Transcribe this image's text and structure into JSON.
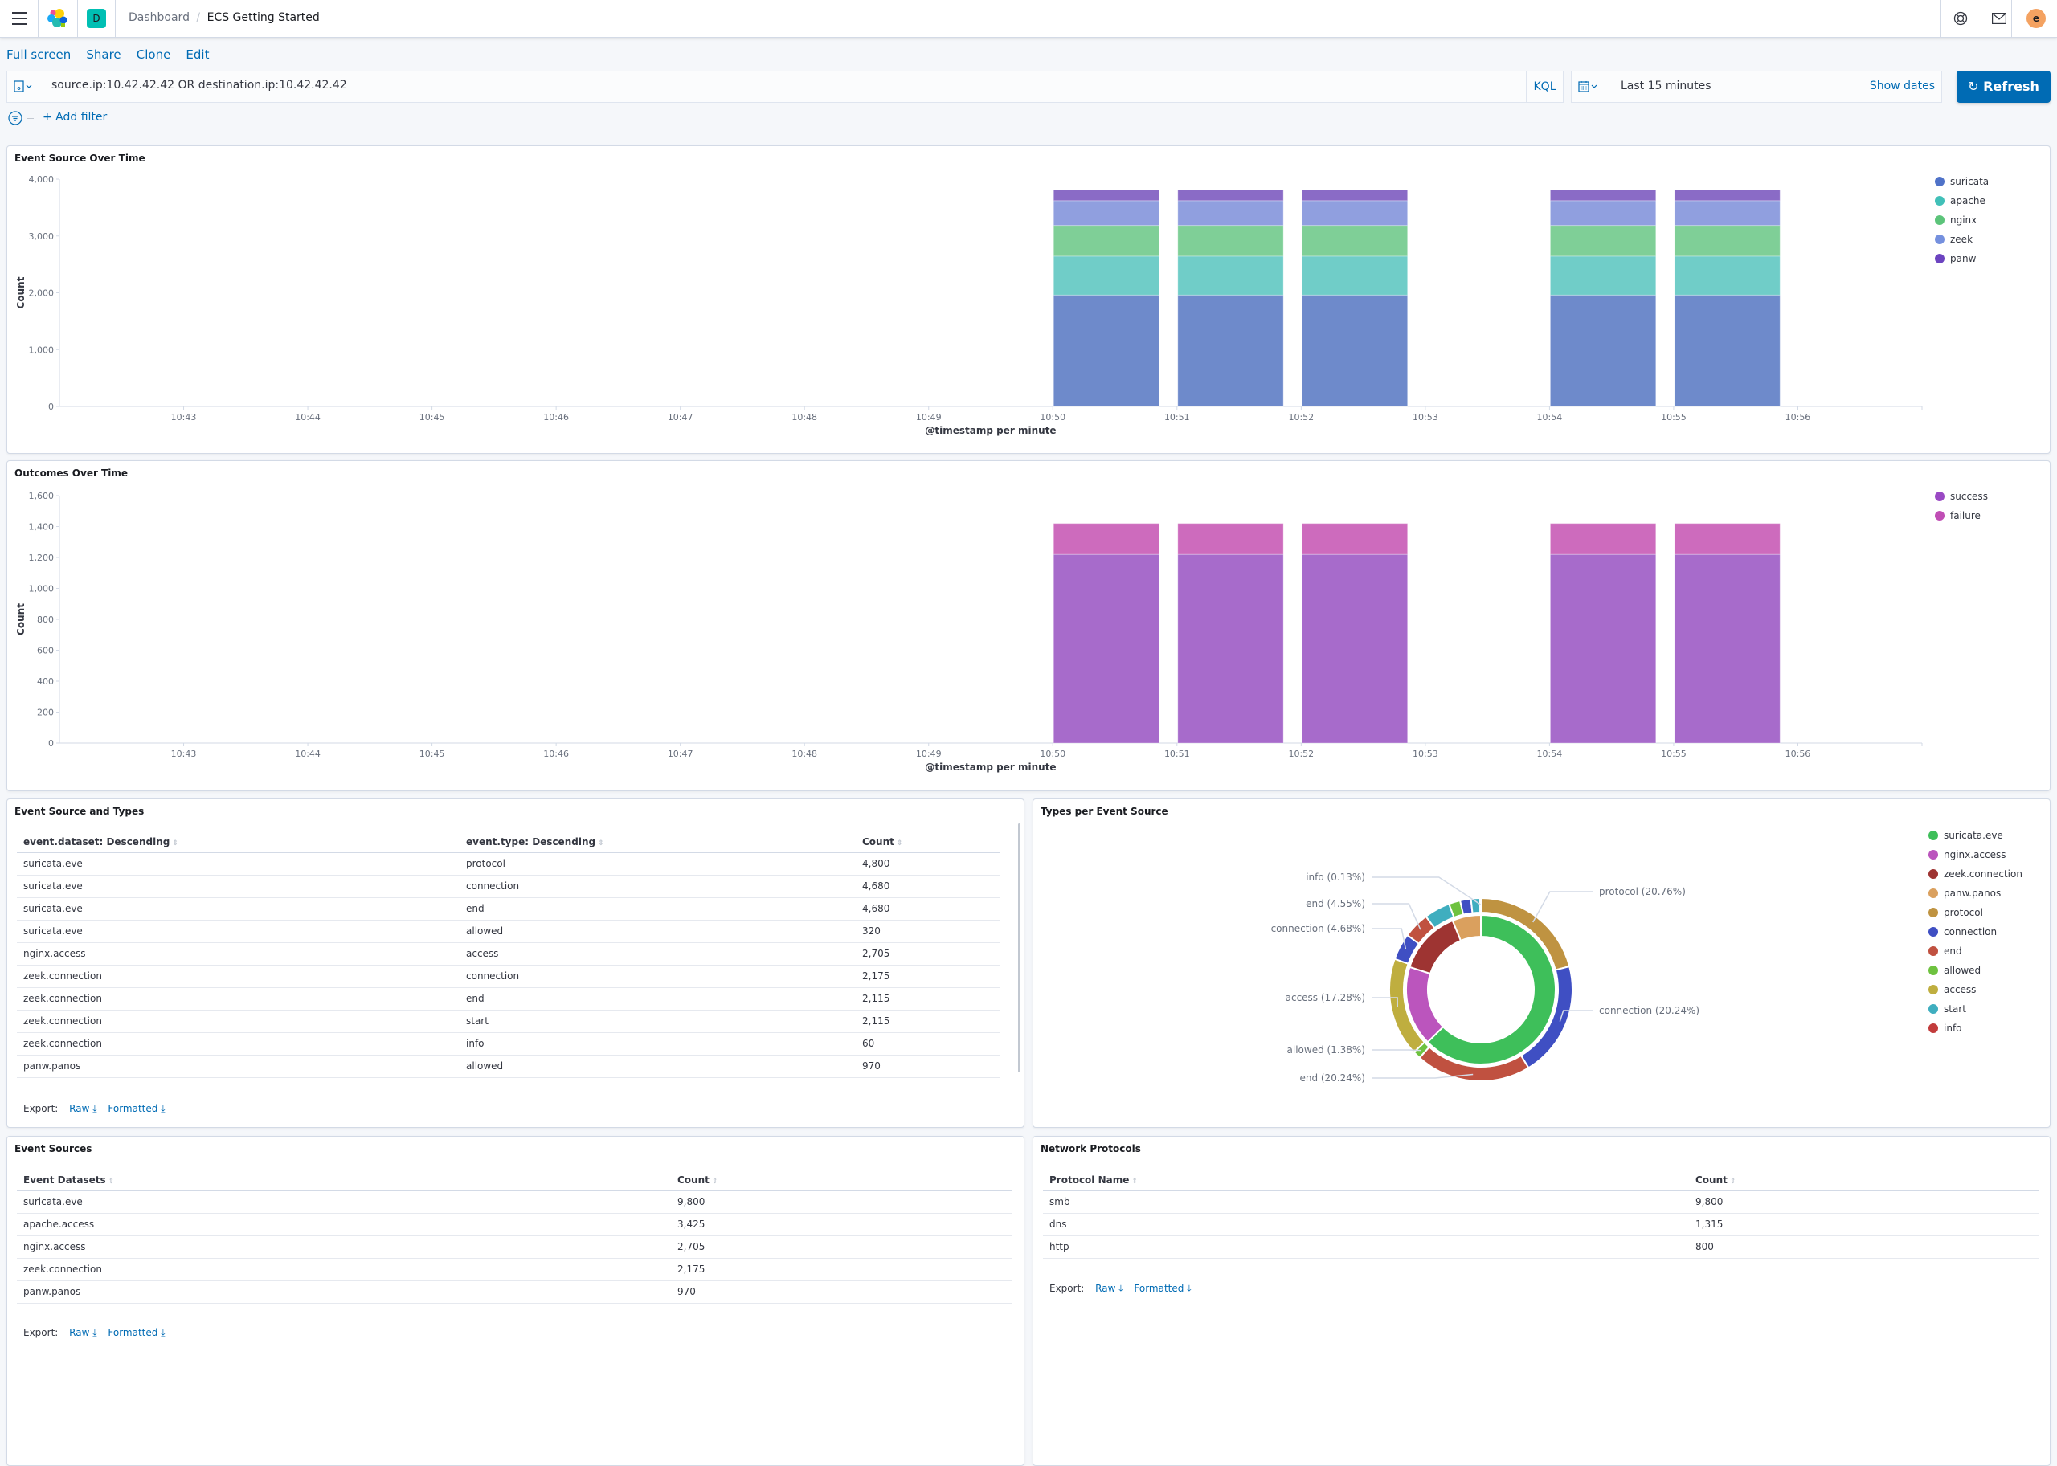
{
  "header": {
    "menu_icon": "hamburger-icon",
    "logo_icon": "kibana-logo",
    "space_letter": "D",
    "space_color": "#00bfb3",
    "breadcrumbs": [
      "Dashboard",
      "ECS Getting Started"
    ],
    "help_icon": "lifebuoy-icon",
    "mail_icon": "mail-icon",
    "avatar_letter": "e",
    "avatar_color": "#f4a261"
  },
  "top_menu": [
    "Full screen",
    "Share",
    "Clone",
    "Edit"
  ],
  "query": {
    "value": "source.ip:10.42.42.42 OR destination.ip:10.42.42.42",
    "language": "KQL",
    "save_icon": "save-query-icon"
  },
  "time": {
    "calendar_icon": "calendar-icon",
    "value": "Last 15 minutes",
    "show_dates": "Show dates",
    "refresh": "Refresh",
    "accent": "#006bb4"
  },
  "filter": {
    "add_label": "+ Add filter",
    "filter_icon": "filter-icon"
  },
  "panels": {
    "event_source_over_time": {
      "title": "Event Source Over Time"
    },
    "outcomes_over_time": {
      "title": "Outcomes Over Time"
    },
    "event_source_types": {
      "title": "Event Source and Types",
      "columns": [
        "event.dataset: Descending",
        "event.type: Descending",
        "Count"
      ],
      "rows": [
        [
          "suricata.eve",
          "protocol",
          "4,800"
        ],
        [
          "suricata.eve",
          "connection",
          "4,680"
        ],
        [
          "suricata.eve",
          "end",
          "4,680"
        ],
        [
          "suricata.eve",
          "allowed",
          "320"
        ],
        [
          "nginx.access",
          "access",
          "2,705"
        ],
        [
          "zeek.connection",
          "connection",
          "2,175"
        ],
        [
          "zeek.connection",
          "end",
          "2,115"
        ],
        [
          "zeek.connection",
          "start",
          "2,115"
        ],
        [
          "zeek.connection",
          "info",
          "60"
        ],
        [
          "panw.panos",
          "allowed",
          "970"
        ]
      ],
      "export_label": "Export:",
      "raw": "Raw",
      "formatted": "Formatted"
    },
    "types_per_source": {
      "title": "Types per Event Source"
    },
    "event_sources": {
      "title": "Event Sources",
      "columns": [
        "Event Datasets",
        "Count"
      ],
      "rows": [
        [
          "suricata.eve",
          "9,800"
        ],
        [
          "apache.access",
          "3,425"
        ],
        [
          "nginx.access",
          "2,705"
        ],
        [
          "zeek.connection",
          "2,175"
        ],
        [
          "panw.panos",
          "970"
        ]
      ],
      "export_label": "Export:",
      "raw": "Raw",
      "formatted": "Formatted"
    },
    "network_protocols": {
      "title": "Network Protocols",
      "columns": [
        "Protocol Name",
        "Count"
      ],
      "rows": [
        [
          "smb",
          "9,800"
        ],
        [
          "dns",
          "1,315"
        ],
        [
          "http",
          "800"
        ]
      ],
      "export_label": "Export:",
      "raw": "Raw",
      "formatted": "Formatted"
    }
  },
  "chart_data": [
    {
      "type": "bar",
      "stacked": true,
      "title": "Event Source Over Time",
      "xlabel": "@timestamp per minute",
      "ylabel": "Count",
      "ylim": [
        0,
        4000
      ],
      "yticks": [
        "0",
        "1,000",
        "2,000",
        "3,000",
        "4,000"
      ],
      "xticks": [
        "10:43",
        "10:44",
        "10:45",
        "10:46",
        "10:47",
        "10:48",
        "10:49",
        "10:50",
        "10:51",
        "10:52",
        "10:53",
        "10:54",
        "10:55",
        "10:56"
      ],
      "categories": [
        "10:50",
        "10:51",
        "10:52",
        "10:54",
        "10:55"
      ],
      "legend": "right",
      "series": [
        {
          "name": "suricata",
          "color": "#6e8acb",
          "legend_color": "#4f72c8",
          "values": [
            1960,
            1960,
            1960,
            1960,
            1960
          ]
        },
        {
          "name": "apache",
          "color": "#70cdc8",
          "legend_color": "#41c0b8",
          "values": [
            685,
            685,
            685,
            685,
            685
          ]
        },
        {
          "name": "nginx",
          "color": "#7fcf97",
          "legend_color": "#5cc47a",
          "values": [
            541,
            541,
            541,
            541,
            541
          ]
        },
        {
          "name": "zeek",
          "color": "#909fdf",
          "legend_color": "#7590de",
          "values": [
            435,
            435,
            435,
            435,
            435
          ]
        },
        {
          "name": "panw",
          "color": "#8a6bc6",
          "legend_color": "#6c44c0",
          "values": [
            194,
            194,
            194,
            194,
            194
          ]
        }
      ]
    },
    {
      "type": "bar",
      "stacked": true,
      "title": "Outcomes Over Time",
      "xlabel": "@timestamp per minute",
      "ylabel": "Count",
      "ylim": [
        0,
        1600
      ],
      "yticks": [
        "0",
        "200",
        "400",
        "600",
        "800",
        "1,000",
        "1,200",
        "1,400",
        "1,600"
      ],
      "xticks": [
        "10:43",
        "10:44",
        "10:45",
        "10:46",
        "10:47",
        "10:48",
        "10:49",
        "10:50",
        "10:51",
        "10:52",
        "10:53",
        "10:54",
        "10:55",
        "10:56"
      ],
      "categories": [
        "10:50",
        "10:51",
        "10:52",
        "10:54",
        "10:55"
      ],
      "legend": "right",
      "series": [
        {
          "name": "success",
          "color": "#a76bcb",
          "legend_color": "#9a49c4",
          "values": [
            1220,
            1220,
            1220,
            1220,
            1220
          ]
        },
        {
          "name": "failure",
          "color": "#cd6bbd",
          "legend_color": "#c04eb5",
          "values": [
            200,
            200,
            200,
            200,
            200
          ]
        }
      ]
    },
    {
      "type": "pie",
      "donut": true,
      "title": "Types per Event Source",
      "legend": "right",
      "legend_items": [
        {
          "name": "suricata.eve",
          "color": "#3ebf5a"
        },
        {
          "name": "nginx.access",
          "color": "#bb55bd"
        },
        {
          "name": "zeek.connection",
          "color": "#9e3432"
        },
        {
          "name": "panw.panos",
          "color": "#daa05e"
        },
        {
          "name": "protocol",
          "color": "#bf9341"
        },
        {
          "name": "connection",
          "color": "#3f4fc3"
        },
        {
          "name": "end",
          "color": "#c05140"
        },
        {
          "name": "allowed",
          "color": "#6ec23f"
        },
        {
          "name": "access",
          "color": "#bfae3f"
        },
        {
          "name": "start",
          "color": "#3faebf"
        },
        {
          "name": "info",
          "color": "#c23c3c"
        }
      ],
      "inner": [
        {
          "name": "suricata.eve",
          "value": 62.62,
          "color": "#3ebf5a"
        },
        {
          "name": "nginx.access",
          "value": 17.28,
          "color": "#bb55bd"
        },
        {
          "name": "zeek.connection",
          "value": 13.91,
          "color": "#9e3432"
        },
        {
          "name": "panw.panos",
          "value": 6.19,
          "color": "#daa05e"
        }
      ],
      "outer": [
        {
          "name": "protocol",
          "value": 20.76,
          "label": "protocol (20.76%)",
          "color": "#bf9341"
        },
        {
          "name": "connection",
          "value": 20.24,
          "label": "connection (20.24%)",
          "color": "#3f4fc3"
        },
        {
          "name": "end",
          "value": 20.24,
          "label": "end (20.24%)",
          "color": "#c05140"
        },
        {
          "name": "allowed",
          "value": 1.38,
          "label": "allowed (1.38%)",
          "color": "#6ec23f"
        },
        {
          "name": "access",
          "value": 17.28,
          "label": "access (17.28%)",
          "color": "#bfae3f"
        },
        {
          "name": "connection",
          "value": 4.68,
          "label": "connection (4.68%)",
          "color": "#3f4fc3"
        },
        {
          "name": "end",
          "value": 4.55,
          "label": "end (4.55%)",
          "color": "#c05140"
        },
        {
          "name": "start",
          "value": 4.55,
          "label": "",
          "color": "#3faebf"
        },
        {
          "name": "allowed",
          "value": 2.0,
          "label": "",
          "color": "#6ec23f"
        },
        {
          "name": "connection",
          "value": 1.9,
          "label": "",
          "color": "#3f4fc3"
        },
        {
          "name": "start",
          "value": 1.6,
          "label": "",
          "color": "#3faebf"
        },
        {
          "name": "info",
          "value": 0.13,
          "label": "info (0.13%)",
          "color": "#c23c3c"
        }
      ]
    }
  ]
}
